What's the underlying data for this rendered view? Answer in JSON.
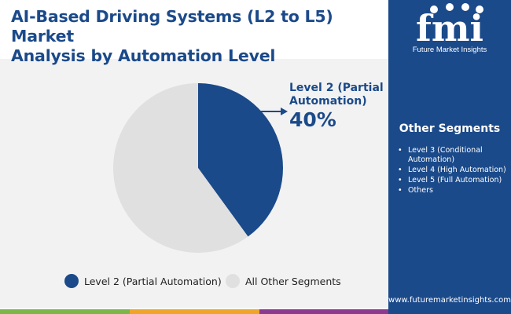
{
  "header": {
    "title_line1": "AI-Based Driving Systems (L2 to L5) Market",
    "title_line2": "Analysis by Automation Level"
  },
  "brand": {
    "logo_text": "fmi",
    "tagline": "Future Market Insights",
    "website": "www.futuremarketinsights.com",
    "colors": {
      "primary": "#1b4a8a",
      "light": "#e0e0e0",
      "bar_green": "#7ab648",
      "bar_orange": "#f0a42a",
      "bar_purple": "#8b3a8f",
      "bar_blue": "#1b4a8a"
    }
  },
  "sidebar": {
    "title": "Other Segments",
    "items": [
      "Level 3 (Conditional Automation)",
      "Level 4 (High Automation)",
      "Level 5 (Full Automation)",
      "Others"
    ]
  },
  "callout": {
    "label": "Level 2 (Partial Automation)",
    "value": "40%"
  },
  "chart_data": {
    "type": "pie",
    "title": "AI-Based Driving Systems (L2 to L5) Market Analysis by Automation Level",
    "series": [
      {
        "name": "Level 2 (Partial Automation)",
        "value": 40,
        "color": "#1b4a8a"
      },
      {
        "name": "All Other Segments",
        "value": 60,
        "color": "#e0e0e0"
      }
    ],
    "start_angle_deg": 0,
    "direction": "clockwise",
    "legend_position": "bottom"
  }
}
